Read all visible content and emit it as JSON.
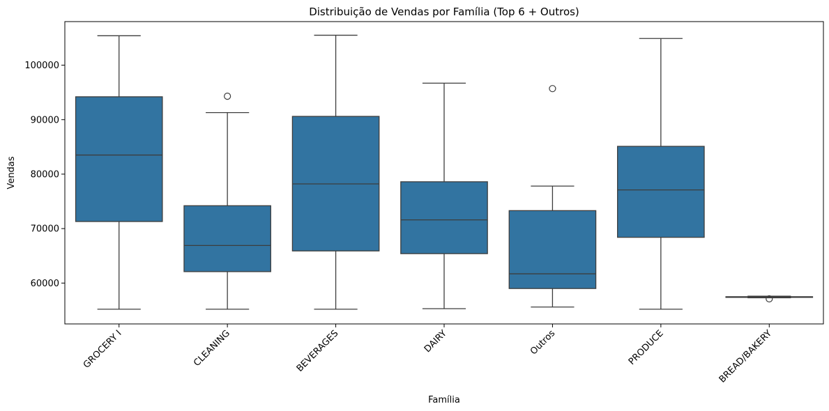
{
  "chart_data": {
    "type": "boxplot",
    "title": "Distribuição de Vendas por Família (Top 6 + Outros)",
    "xlabel": "Família",
    "ylabel": "Vendas",
    "ylim": [
      52500,
      108000
    ],
    "yticks": [
      60000,
      70000,
      80000,
      90000,
      100000
    ],
    "ytick_labels": [
      "60000",
      "70000",
      "80000",
      "90000",
      "100000"
    ],
    "grid": false,
    "box_color": "#3274a1",
    "line_color": "#3d3d3d",
    "categories": [
      "GROCERY I",
      "CLEANING",
      "BEVERAGES",
      "DAIRY",
      "Outros",
      "PRODUCE",
      "BREAD/BAKERY"
    ],
    "boxes": [
      {
        "category": "GROCERY I",
        "whisker_low": 55200,
        "q1": 71300,
        "median": 83500,
        "q3": 94200,
        "whisker_high": 105400,
        "outliers": []
      },
      {
        "category": "CLEANING",
        "whisker_low": 55200,
        "q1": 62100,
        "median": 66900,
        "q3": 74200,
        "whisker_high": 91300,
        "outliers": [
          94300
        ]
      },
      {
        "category": "BEVERAGES",
        "whisker_low": 55200,
        "q1": 65900,
        "median": 78200,
        "q3": 90600,
        "whisker_high": 105500,
        "outliers": []
      },
      {
        "category": "DAIRY",
        "whisker_low": 55300,
        "q1": 65400,
        "median": 71600,
        "q3": 78600,
        "whisker_high": 96700,
        "outliers": []
      },
      {
        "category": "Outros",
        "whisker_low": 55600,
        "q1": 59000,
        "median": 61700,
        "q3": 73300,
        "whisker_high": 77800,
        "outliers": [
          95700
        ]
      },
      {
        "category": "PRODUCE",
        "whisker_low": 55200,
        "q1": 68400,
        "median": 77100,
        "q3": 85100,
        "whisker_high": 104900,
        "outliers": []
      },
      {
        "category": "BREAD/BAKERY",
        "whisker_low": 57300,
        "q1": 57400,
        "median": 57450,
        "q3": 57500,
        "whisker_high": 57600,
        "outliers": [
          57100
        ]
      }
    ]
  }
}
